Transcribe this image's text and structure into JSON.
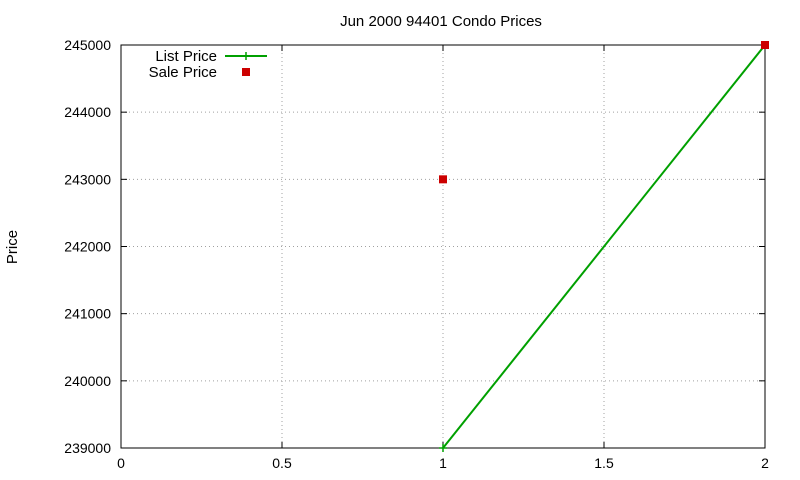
{
  "chart_data": {
    "type": "line",
    "title": "Jun 2000 94401 Condo Prices",
    "xlabel": "",
    "ylabel": "Price",
    "xlim": [
      0,
      2
    ],
    "ylim": [
      239000,
      245000
    ],
    "x_ticks": [
      0,
      0.5,
      1,
      1.5,
      2
    ],
    "x_tick_labels": [
      "0",
      "0.5",
      "1",
      "1.5",
      "2"
    ],
    "y_ticks": [
      239000,
      240000,
      241000,
      242000,
      243000,
      244000,
      245000
    ],
    "y_tick_labels": [
      "239000",
      "240000",
      "241000",
      "242000",
      "243000",
      "244000",
      "245000"
    ],
    "grid": true,
    "legend_position": "top-left",
    "series": [
      {
        "name": "List Price",
        "style": "linespoints",
        "marker": "plus",
        "color": "#00a000",
        "points": [
          {
            "x": 1,
            "y": 239000
          },
          {
            "x": 2,
            "y": 245000
          }
        ]
      },
      {
        "name": "Sale Price",
        "style": "points",
        "marker": "square",
        "color": "#cc0000",
        "points": [
          {
            "x": 1,
            "y": 243000
          },
          {
            "x": 2,
            "y": 245000
          }
        ]
      }
    ]
  }
}
